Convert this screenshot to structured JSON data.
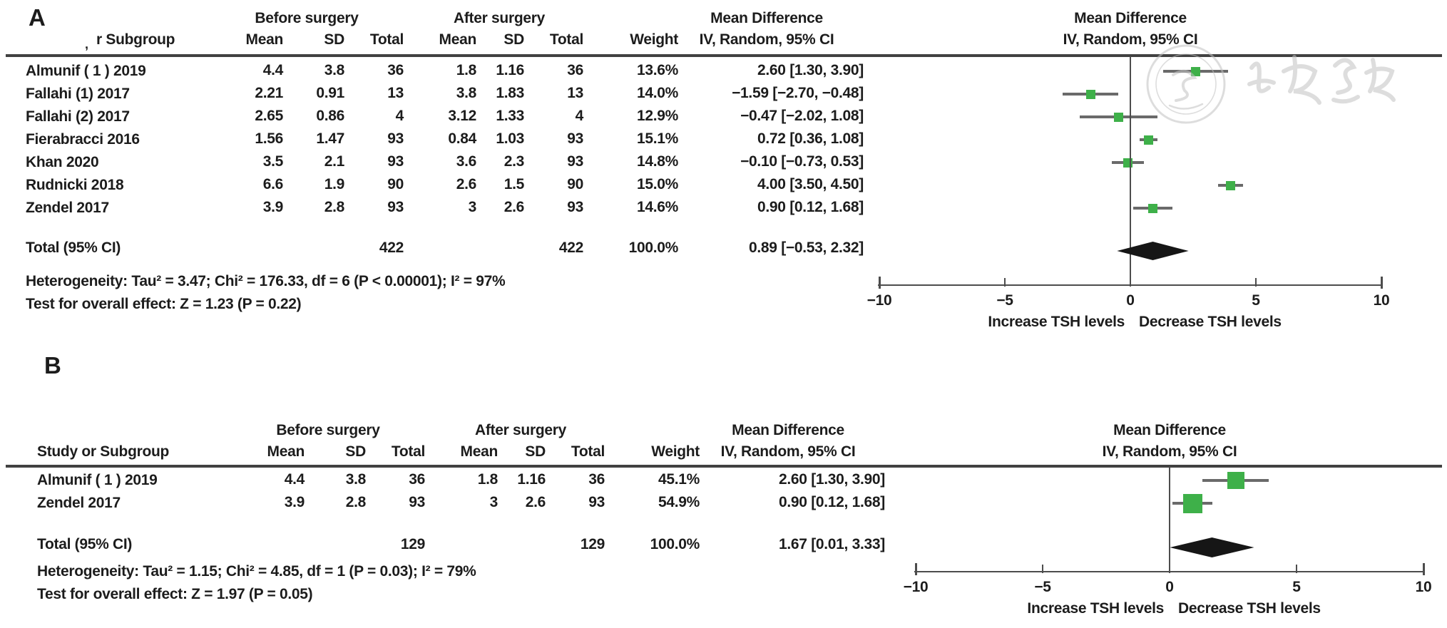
{
  "figure": {
    "panel_a_label": "A",
    "panel_b_label": "B",
    "watermark_text": "中华医学会",
    "colors": {
      "marker_green": "#3EB049",
      "ci_line": "#6a6a6a",
      "diamond": "#161616",
      "rule": "#414141",
      "axis": "#4d4d4d",
      "text": "#1c1c1c",
      "watermark": "#c3c3c3"
    }
  },
  "columns": {
    "group_before": "Before surgery",
    "group_after": "After surgery",
    "md_title": "Mean Difference",
    "md_subtitle": "IV, Random, 95% CI",
    "plot_title": "Mean Difference",
    "plot_subtitle": "IV, Random, 95% CI",
    "mean": "Mean",
    "sd": "SD",
    "total": "Total",
    "weight": "Weight"
  },
  "chart_data": [
    {
      "type": "forest",
      "panel": "A",
      "header_study": "r Subgroup",
      "header_study_remnant": ",",
      "studies": [
        {
          "study": "Almunif ( 1 )  2019",
          "mean_before": "4.4",
          "sd_before": "3.8",
          "total_before": "36",
          "mean_after": "1.8",
          "sd_after": "1.16",
          "total_after": "36",
          "weight": "13.6%",
          "md_text": "2.60 [1.30, 3.90]",
          "md": 2.6,
          "ci_low": 1.3,
          "ci_high": 3.9,
          "weight_pct": 13.6
        },
        {
          "study": "Fallahi (1) 2017",
          "mean_before": "2.21",
          "sd_before": "0.91",
          "total_before": "13",
          "mean_after": "3.8",
          "sd_after": "1.83",
          "total_after": "13",
          "weight": "14.0%",
          "md_text": "−1.59 [−2.70, −0.48]",
          "md": -1.59,
          "ci_low": -2.7,
          "ci_high": -0.48,
          "weight_pct": 14.0
        },
        {
          "study": "Fallahi (2) 2017",
          "mean_before": "2.65",
          "sd_before": "0.86",
          "total_before": "4",
          "mean_after": "3.12",
          "sd_after": "1.33",
          "total_after": "4",
          "weight": "12.9%",
          "md_text": "−0.47 [−2.02, 1.08]",
          "md": -0.47,
          "ci_low": -2.02,
          "ci_high": 1.08,
          "weight_pct": 12.9
        },
        {
          "study": "Fierabracci 2016",
          "mean_before": "1.56",
          "sd_before": "1.47",
          "total_before": "93",
          "mean_after": "0.84",
          "sd_after": "1.03",
          "total_after": "93",
          "weight": "15.1%",
          "md_text": "0.72 [0.36, 1.08]",
          "md": 0.72,
          "ci_low": 0.36,
          "ci_high": 1.08,
          "weight_pct": 15.1
        },
        {
          "study": "Khan 2020",
          "mean_before": "3.5",
          "sd_before": "2.1",
          "total_before": "93",
          "mean_after": "3.6",
          "sd_after": "2.3",
          "total_after": "93",
          "weight": "14.8%",
          "md_text": "−0.10 [−0.73, 0.53]",
          "md": -0.1,
          "ci_low": -0.73,
          "ci_high": 0.53,
          "weight_pct": 14.8
        },
        {
          "study": "Rudnicki 2018",
          "mean_before": "6.6",
          "sd_before": "1.9",
          "total_before": "90",
          "mean_after": "2.6",
          "sd_after": "1.5",
          "total_after": "90",
          "weight": "15.0%",
          "md_text": "4.00 [3.50, 4.50]",
          "md": 4.0,
          "ci_low": 3.5,
          "ci_high": 4.5,
          "weight_pct": 15.0
        },
        {
          "study": "Zendel 2017",
          "mean_before": "3.9",
          "sd_before": "2.8",
          "total_before": "93",
          "mean_after": "3",
          "sd_after": "2.6",
          "total_after": "93",
          "weight": "14.6%",
          "md_text": "0.90 [0.12, 1.68]",
          "md": 0.9,
          "ci_low": 0.12,
          "ci_high": 1.68,
          "weight_pct": 14.6
        }
      ],
      "total": {
        "label": "Total (95% CI)",
        "total_before": "422",
        "total_after": "422",
        "weight": "100.0%",
        "md_text": "0.89 [−0.53, 2.32]",
        "md": 0.89,
        "ci_low": -0.53,
        "ci_high": 2.32
      },
      "heterogeneity": "Heterogeneity: Tau² = 3.47; Chi² = 176.33, df = 6 (P < 0.00001); I² = 97%",
      "overall_effect": "Test for overall effect: Z = 1.23 (P = 0.22)",
      "axis": {
        "xlim": [
          -10,
          10
        ],
        "ticks": [
          -10,
          -5,
          0,
          5,
          10
        ],
        "label_left": "Increase TSH levels",
        "label_right": "Decrease TSH levels"
      }
    },
    {
      "type": "forest",
      "panel": "B",
      "header_study": "Study or Subgroup",
      "studies": [
        {
          "study": "Almunif ( 1 )  2019",
          "mean_before": "4.4",
          "sd_before": "3.8",
          "total_before": "36",
          "mean_after": "1.8",
          "sd_after": "1.16",
          "total_after": "36",
          "weight": "45.1%",
          "md_text": "2.60 [1.30, 3.90]",
          "md": 2.6,
          "ci_low": 1.3,
          "ci_high": 3.9,
          "weight_pct": 45.1
        },
        {
          "study": "Zendel 2017",
          "mean_before": "3.9",
          "sd_before": "2.8",
          "total_before": "93",
          "mean_after": "3",
          "sd_after": "2.6",
          "total_after": "93",
          "weight": "54.9%",
          "md_text": "0.90 [0.12, 1.68]",
          "md": 0.9,
          "ci_low": 0.12,
          "ci_high": 1.68,
          "weight_pct": 54.9
        }
      ],
      "total": {
        "label": "Total (95% CI)",
        "total_before": "129",
        "total_after": "129",
        "weight": "100.0%",
        "md_text": "1.67 [0.01, 3.33]",
        "md": 1.67,
        "ci_low": 0.01,
        "ci_high": 3.33
      },
      "heterogeneity": "Heterogeneity: Tau² = 1.15; Chi² = 4.85, df = 1 (P = 0.03); I² = 79%",
      "overall_effect": "Test for overall effect: Z = 1.97 (P = 0.05)",
      "axis": {
        "xlim": [
          -10,
          10
        ],
        "ticks": [
          -10,
          -5,
          0,
          5,
          10
        ],
        "label_left": "Increase TSH levels",
        "label_right": "Decrease TSH levels"
      }
    }
  ]
}
